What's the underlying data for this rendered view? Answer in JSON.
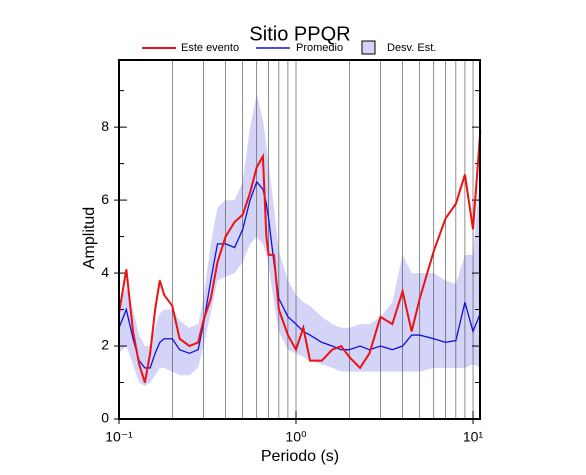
{
  "chart_data": {
    "type": "line",
    "title": "Sitio PPQR",
    "x_label": "Periodo (s)",
    "y_label": "Amplitud",
    "x_scale": "log",
    "grid": true,
    "x": [
      0.1,
      0.11,
      0.12,
      0.13,
      0.14,
      0.15,
      0.16,
      0.17,
      0.18,
      0.2,
      0.22,
      0.25,
      0.28,
      0.3,
      0.33,
      0.36,
      0.4,
      0.45,
      0.5,
      0.55,
      0.6,
      0.65,
      0.68,
      0.7,
      0.75,
      0.8,
      0.9,
      1.0,
      1.1,
      1.2,
      1.4,
      1.6,
      1.8,
      2.0,
      2.3,
      2.6,
      3.0,
      3.5,
      4,
      4.5,
      5,
      6,
      7,
      8,
      9,
      10,
      11
    ],
    "series": [
      {
        "name": "Este evento",
        "color": "#ee1111",
        "values": [
          2.9,
          4.1,
          2.4,
          1.5,
          1.0,
          1.8,
          3.0,
          3.8,
          3.4,
          3.1,
          2.2,
          2.0,
          2.1,
          2.7,
          3.3,
          4.3,
          5.0,
          5.4,
          5.6,
          6.2,
          6.9,
          7.2,
          5.0,
          4.5,
          4.5,
          3.0,
          2.3,
          1.9,
          2.5,
          1.6,
          1.6,
          1.9,
          2.0,
          1.7,
          1.4,
          1.8,
          2.8,
          2.6,
          3.5,
          2.4,
          3.3,
          4.6,
          5.5,
          5.9,
          6.7,
          5.2,
          7.9
        ]
      },
      {
        "name": "Promedio",
        "color": "#1111dd",
        "values": [
          2.5,
          3.0,
          2.2,
          1.6,
          1.4,
          1.4,
          1.8,
          2.1,
          2.2,
          2.2,
          1.9,
          1.8,
          1.9,
          2.6,
          3.8,
          4.8,
          4.8,
          4.7,
          5.2,
          6.0,
          6.5,
          6.3,
          5.9,
          5.5,
          4.3,
          3.3,
          2.8,
          2.6,
          2.4,
          2.3,
          2.1,
          2.0,
          1.9,
          1.9,
          2.0,
          1.9,
          2.0,
          1.9,
          2.0,
          2.3,
          2.3,
          2.2,
          2.1,
          2.15,
          3.2,
          2.4,
          2.9
        ]
      }
    ],
    "band": {
      "name": "Desv. Est.",
      "color": "#d4d4f8",
      "lower": [
        1.8,
        2.0,
        1.5,
        1.0,
        0.9,
        1.0,
        1.2,
        1.4,
        1.4,
        1.3,
        1.2,
        1.2,
        1.4,
        2.0,
        2.9,
        3.8,
        3.9,
        4.0,
        4.3,
        4.8,
        5.0,
        4.8,
        4.5,
        4.2,
        3.2,
        2.4,
        1.9,
        1.8,
        1.7,
        1.6,
        1.5,
        1.4,
        1.3,
        1.3,
        1.3,
        1.3,
        1.3,
        1.3,
        1.3,
        1.3,
        1.3,
        1.4,
        1.4,
        1.4,
        1.4,
        1.5,
        1.4
      ],
      "upper": [
        3.2,
        3.6,
        3.0,
        2.3,
        2.0,
        2.0,
        2.5,
        2.9,
        3.0,
        3.0,
        2.7,
        2.5,
        2.6,
        3.3,
        4.8,
        5.8,
        6.0,
        6.0,
        6.5,
        8.0,
        8.9,
        8.2,
        7.5,
        7.0,
        5.8,
        4.6,
        3.8,
        3.4,
        3.2,
        3.1,
        2.8,
        2.6,
        2.5,
        2.5,
        2.6,
        2.6,
        2.8,
        3.2,
        4.5,
        4.0,
        4.0,
        4.0,
        3.8,
        3.7,
        4.5,
        4.5,
        6.8
      ]
    },
    "xlim": [
      0.1,
      10.95
    ],
    "ylim": [
      0,
      9.84
    ],
    "xticks": [
      {
        "value": 0.1,
        "label": "10⁻¹"
      },
      {
        "value": 1,
        "label": "10⁰"
      },
      {
        "value": 10,
        "label": "10¹"
      }
    ],
    "minor_xticks": [
      0.2,
      0.3,
      0.4,
      0.5,
      0.6,
      0.7,
      0.8,
      0.9,
      2,
      3,
      4,
      5,
      6,
      7,
      8,
      9
    ],
    "yticks": [
      0,
      2,
      4,
      6,
      8
    ],
    "minor_yticks": [
      1,
      3,
      5,
      7,
      9
    ]
  }
}
